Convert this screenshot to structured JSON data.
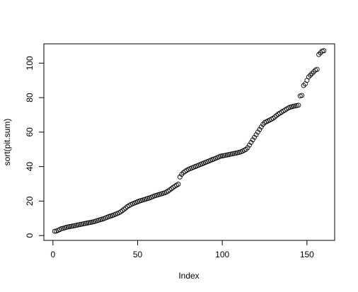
{
  "chart_data": {
    "type": "scatter",
    "xlabel": "Index",
    "ylabel": "sort(pit.sum)",
    "x": [
      1,
      2,
      3,
      4,
      5,
      6,
      7,
      8,
      9,
      10,
      11,
      12,
      13,
      14,
      15,
      16,
      17,
      18,
      19,
      20,
      21,
      22,
      23,
      24,
      25,
      26,
      27,
      28,
      29,
      30,
      31,
      32,
      33,
      34,
      35,
      36,
      37,
      38,
      39,
      40,
      41,
      42,
      43,
      44,
      45,
      46,
      47,
      48,
      49,
      50,
      51,
      52,
      53,
      54,
      55,
      56,
      57,
      58,
      59,
      60,
      61,
      62,
      63,
      64,
      65,
      66,
      67,
      68,
      69,
      70,
      71,
      72,
      73,
      74,
      75,
      76,
      77,
      78,
      79,
      80,
      81,
      82,
      83,
      84,
      85,
      86,
      87,
      88,
      89,
      90,
      91,
      92,
      93,
      94,
      95,
      96,
      97,
      98,
      99,
      100,
      101,
      102,
      103,
      104,
      105,
      106,
      107,
      108,
      109,
      110,
      111,
      112,
      113,
      114,
      115,
      116,
      117,
      118,
      119,
      120,
      121,
      122,
      123,
      124,
      125,
      126,
      127,
      128,
      129,
      130,
      131,
      132,
      133,
      134,
      135,
      136,
      137,
      138,
      139,
      140,
      141,
      142,
      143,
      144,
      145,
      146,
      147,
      148,
      149,
      150,
      151,
      152,
      153,
      154,
      155,
      156,
      157,
      158,
      159,
      160
    ],
    "values": [
      2.5,
      2.6,
      3,
      3.5,
      4,
      4.2,
      4.5,
      4.8,
      5,
      5.2,
      5.4,
      5.6,
      5.8,
      6,
      6.2,
      6.4,
      6.6,
      6.8,
      7,
      7.2,
      7.4,
      7.6,
      7.8,
      8,
      8.3,
      8.6,
      8.9,
      9.2,
      9.5,
      9.8,
      10.2,
      10.6,
      11,
      11.3,
      11.6,
      12,
      12.4,
      12.8,
      13.2,
      13.8,
      14.5,
      15.2,
      16,
      16.8,
      17.4,
      18,
      18.4,
      18.8,
      19.2,
      19.6,
      20,
      20.3,
      20.6,
      20.9,
      21.2,
      21.5,
      21.8,
      22.2,
      22.6,
      23,
      23.3,
      23.6,
      23.9,
      24.2,
      24.5,
      24.8,
      25.2,
      25.8,
      26.5,
      27.2,
      28,
      28.6,
      29.2,
      29.8,
      34,
      35.5,
      36.5,
      37.2,
      37.8,
      38.4,
      38.8,
      39.2,
      39.6,
      40,
      40.4,
      40.8,
      41.2,
      41.6,
      42,
      42.4,
      42.8,
      43.2,
      43.6,
      44,
      44.4,
      44.8,
      45.2,
      45.6,
      46,
      46.2,
      46.4,
      46.6,
      46.8,
      47,
      47.2,
      47.4,
      47.6,
      47.8,
      48,
      48.3,
      48.6,
      49,
      49.5,
      50,
      51,
      52.5,
      54,
      55.5,
      57,
      58.5,
      60,
      61.5,
      63,
      64.5,
      65.5,
      66,
      66.5,
      67,
      67.5,
      68,
      68.8,
      69.6,
      70.4,
      71,
      71.6,
      72.2,
      72.8,
      73.4,
      74,
      74.4,
      74.7,
      75,
      75.2,
      75.4,
      75.6,
      81,
      81.3,
      87,
      88,
      90,
      92,
      93,
      94,
      95,
      96,
      96.4,
      105,
      106,
      107,
      107.2
    ],
    "color": "#000000",
    "xlim": [
      -5.36,
      166.36
    ],
    "ylim": [
      -2.8,
      111.2
    ],
    "xticks": [
      0,
      50,
      100,
      150
    ],
    "yticks": [
      0,
      20,
      40,
      60,
      80,
      100
    ]
  }
}
